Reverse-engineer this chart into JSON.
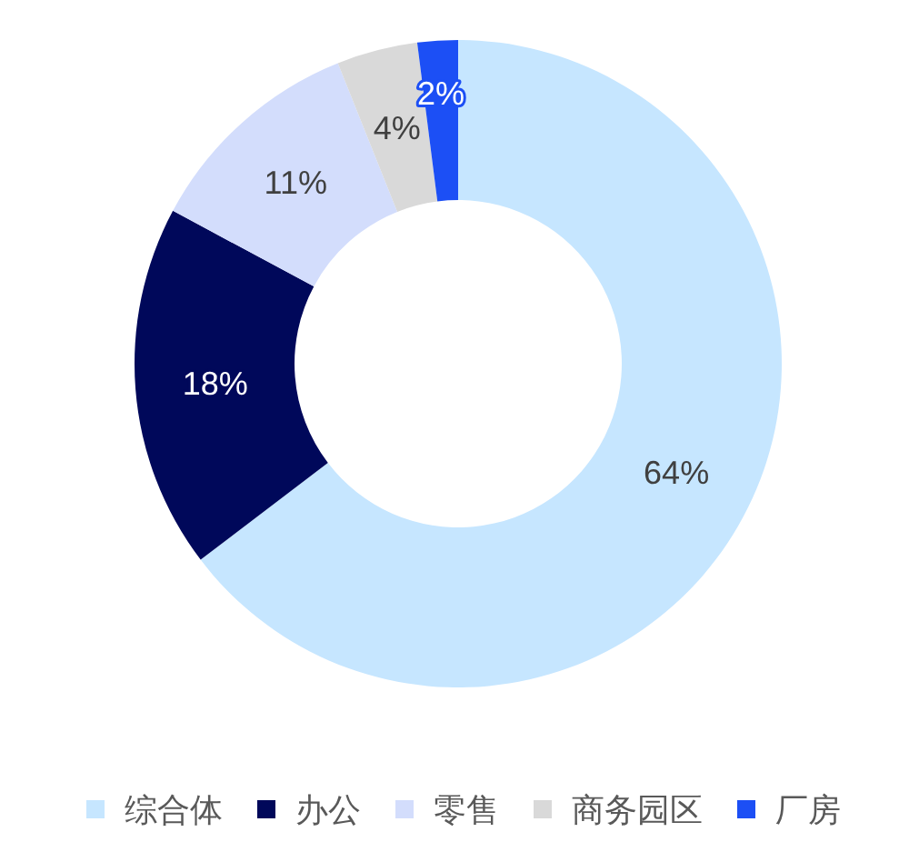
{
  "chart_data": {
    "type": "donut",
    "categories": [
      "综合体",
      "办公",
      "零售",
      "商务园区",
      "厂房"
    ],
    "values": [
      64,
      18,
      11,
      4,
      2
    ],
    "colors": [
      "#c6e6ff",
      "#00085a",
      "#d3ddfc",
      "#d9d9d9",
      "#1c4ff5"
    ],
    "value_labels": [
      "64%",
      "18%",
      "11%",
      "4%",
      "2%"
    ],
    "legend": "bottom"
  }
}
